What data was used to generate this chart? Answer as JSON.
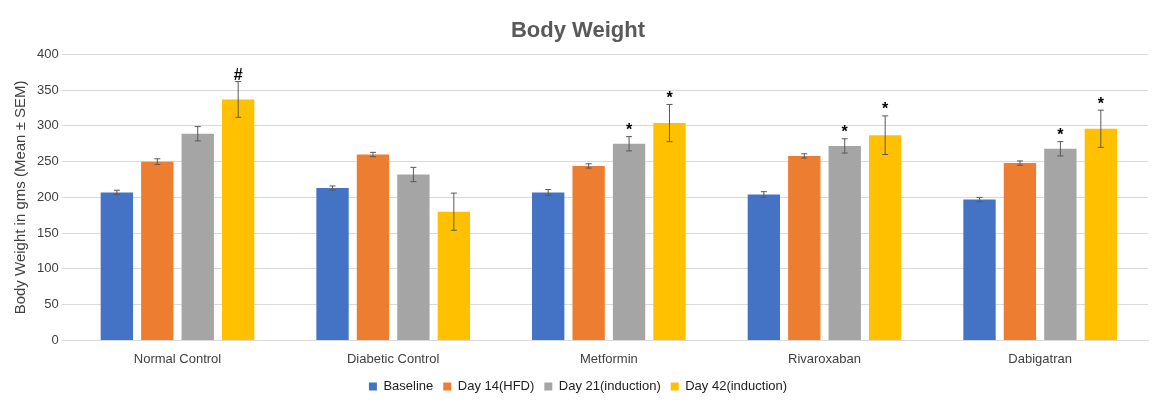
{
  "chart_data": {
    "type": "bar",
    "title": "Body Weight",
    "ylabel": "Body Weight in gms (Mean ± SEM)",
    "categories": [
      "Normal Control",
      "Diabetic Control",
      "Metformin",
      "Rivaroxaban",
      "Dabigatran"
    ],
    "series": [
      {
        "name": "Baseline",
        "color": "#4472c4",
        "values": [
          207,
          213,
          207,
          204,
          197
        ],
        "errors": [
          3,
          3,
          4,
          4,
          3
        ]
      },
      {
        "name": "Day 14(HFD)",
        "color": "#ed7d31",
        "values": [
          250,
          260,
          244,
          258,
          248
        ],
        "errors": [
          4,
          3,
          3,
          3,
          3
        ]
      },
      {
        "name": "Day 21(induction)",
        "color": "#a5a5a5",
        "values": [
          289,
          232,
          275,
          272,
          268
        ],
        "errors": [
          10,
          10,
          10,
          10,
          10
        ],
        "value_labels": [
          null,
          null,
          "*",
          "*",
          "*"
        ]
      },
      {
        "name": "Day 42(induction)",
        "color": "#ffc000",
        "values": [
          337,
          180,
          304,
          287,
          296
        ],
        "errors": [
          25,
          26,
          26,
          27,
          26
        ],
        "value_labels": [
          "#",
          null,
          "*",
          "*",
          "*"
        ]
      }
    ],
    "ylim": [
      0,
      400
    ],
    "yticks": [
      0,
      50,
      100,
      150,
      200,
      250,
      300,
      350,
      400
    ],
    "grid": "y",
    "legend": "bottom"
  }
}
